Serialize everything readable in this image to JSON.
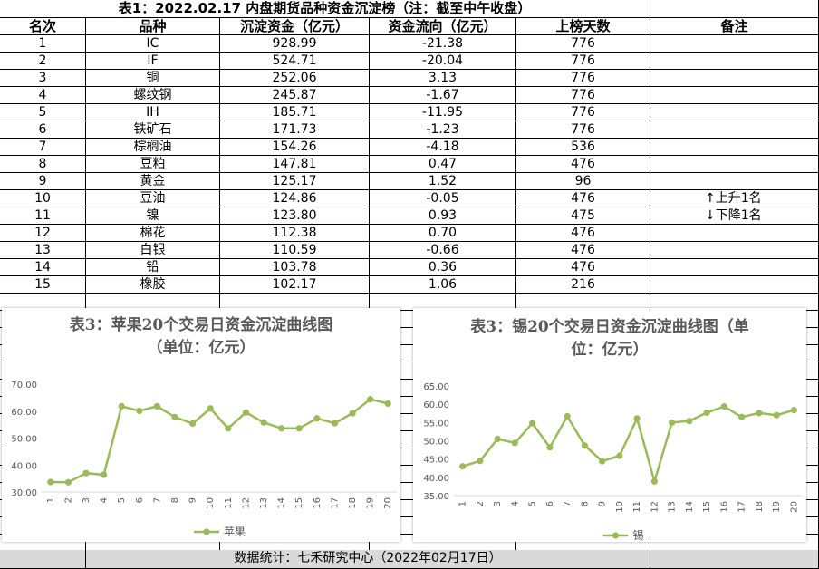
{
  "table": {
    "title": "表1：2022.02.17 内盘期货品种资金沉淀榜（注：截至中午收盘）",
    "headers": [
      "名次",
      "品种",
      "沉淀资金（亿元）",
      "资金流向（亿元）",
      "上榜天数",
      "备注"
    ],
    "rows": [
      {
        "rank": "1",
        "name": "IC",
        "fund": "928.99",
        "flow": "-21.38",
        "days": "776",
        "note": ""
      },
      {
        "rank": "2",
        "name": "IF",
        "fund": "524.71",
        "flow": "-20.04",
        "days": "776",
        "note": ""
      },
      {
        "rank": "3",
        "name": "铜",
        "fund": "252.06",
        "flow": "3.13",
        "days": "776",
        "note": ""
      },
      {
        "rank": "4",
        "name": "螺纹钢",
        "fund": "245.87",
        "flow": "-1.67",
        "days": "776",
        "note": ""
      },
      {
        "rank": "5",
        "name": "IH",
        "fund": "185.71",
        "flow": "-11.95",
        "days": "776",
        "note": ""
      },
      {
        "rank": "6",
        "name": "铁矿石",
        "fund": "171.73",
        "flow": "-1.23",
        "days": "776",
        "note": ""
      },
      {
        "rank": "7",
        "name": "棕榈油",
        "fund": "154.26",
        "flow": "-4.18",
        "days": "536",
        "note": ""
      },
      {
        "rank": "8",
        "name": "豆粕",
        "fund": "147.81",
        "flow": "0.47",
        "days": "476",
        "note": ""
      },
      {
        "rank": "9",
        "name": "黄金",
        "fund": "125.17",
        "flow": "1.52",
        "days": "96",
        "note": ""
      },
      {
        "rank": "10",
        "name": "豆油",
        "fund": "124.86",
        "flow": "-0.05",
        "days": "476",
        "note": "↑上升1名"
      },
      {
        "rank": "11",
        "name": "镍",
        "fund": "123.80",
        "flow": "0.93",
        "days": "475",
        "note": "↓下降1名"
      },
      {
        "rank": "12",
        "name": "棉花",
        "fund": "112.38",
        "flow": "0.70",
        "days": "476",
        "note": ""
      },
      {
        "rank": "13",
        "name": "白银",
        "fund": "110.59",
        "flow": "-0.66",
        "days": "476",
        "note": ""
      },
      {
        "rank": "14",
        "name": "铅",
        "fund": "103.78",
        "flow": "0.36",
        "days": "476",
        "note": ""
      },
      {
        "rank": "15",
        "name": "橡胶",
        "fund": "102.17",
        "flow": "1.06",
        "days": "216",
        "note": ""
      }
    ],
    "footer": "数据统计：七禾研究中心（2022年02月17日）"
  },
  "chart_data": [
    {
      "type": "line",
      "title_line1": "表3：苹果20个交易日资金沉淀曲线图",
      "title_line2": "（单位：亿元）",
      "categories": [
        "1",
        "2",
        "3",
        "4",
        "5",
        "6",
        "7",
        "8",
        "9",
        "10",
        "11",
        "12",
        "13",
        "14",
        "15",
        "16",
        "17",
        "18",
        "19",
        "20"
      ],
      "series": [
        {
          "name": "苹果",
          "values": [
            33.7,
            33.6,
            37.0,
            36.4,
            61.8,
            60.1,
            61.8,
            57.8,
            55.4,
            61.0,
            53.6,
            59.5,
            55.8,
            53.6,
            53.6,
            57.3,
            55.5,
            59.2,
            64.4,
            62.8
          ]
        }
      ],
      "y_ticks": [
        "30.00",
        "40.00",
        "50.00",
        "60.00",
        "70.00"
      ],
      "ylim": [
        30,
        70
      ],
      "color": "#9bbb59",
      "legend_position": "bottom"
    },
    {
      "type": "line",
      "title_line1": "表3：锡20个交易日资金沉淀曲线图（单",
      "title_line2": "位：亿元）",
      "categories": [
        "1",
        "2",
        "3",
        "4",
        "5",
        "6",
        "7",
        "8",
        "9",
        "10",
        "11",
        "12",
        "13",
        "14",
        "15",
        "16",
        "17",
        "18",
        "19",
        "20"
      ],
      "series": [
        {
          "name": "锡",
          "values": [
            43.0,
            44.5,
            50.5,
            49.4,
            54.8,
            48.2,
            56.7,
            48.7,
            44.4,
            45.9,
            56.1,
            38.9,
            55.0,
            55.4,
            57.7,
            59.4,
            56.5,
            57.6,
            57.0,
            58.4
          ]
        }
      ],
      "y_ticks": [
        "35.00",
        "40.00",
        "45.00",
        "50.00",
        "55.00",
        "60.00",
        "65.00"
      ],
      "ylim": [
        35,
        65
      ],
      "color": "#9bbb59",
      "legend_position": "bottom"
    }
  ]
}
